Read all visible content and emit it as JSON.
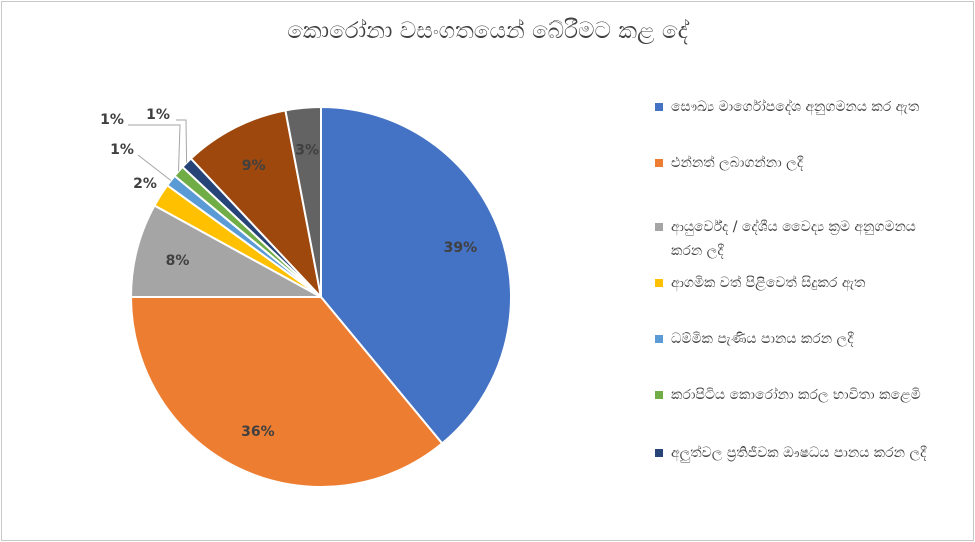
{
  "chart_data": {
    "type": "pie",
    "title": "කොරෝනා වසංගතයෙන් බේරීමට කළ දේ",
    "categories": [
      "සෞඛ්‍ය මාර්ගෝපදේශ අනුගමනය කර ඇත",
      "එන්නත් ලබාගන්නා ලදී",
      "ආයුර්වේද / දේශීය වෛද්‍ය ක්‍රම අනුගමනය කරන ලදී",
      "ආගමික වත් පිළිවෙත් සිදුකර ඇත",
      "ධම්මික පැණිය පානය කරන ලදී",
      "කරාපිටිය කොරෝනා කරල භාවිතා කළෙමි",
      "අලුත්වල ප්‍රතිජීවක ඖෂධය පානය කරන ලදී",
      "",
      ""
    ],
    "values": [
      39,
      36,
      8,
      2,
      1,
      1,
      1,
      9,
      3
    ],
    "data_labels": [
      "39%",
      "36%",
      "8%",
      "2%",
      "1%",
      "1%",
      "1%",
      "9%",
      "3%"
    ],
    "colors": [
      "#4472C4",
      "#ED7D31",
      "#A5A5A5",
      "#FFC000",
      "#5B9BD5",
      "#70AD47",
      "#264478",
      "#9E480E",
      "#636363"
    ],
    "legend_position": "right"
  }
}
